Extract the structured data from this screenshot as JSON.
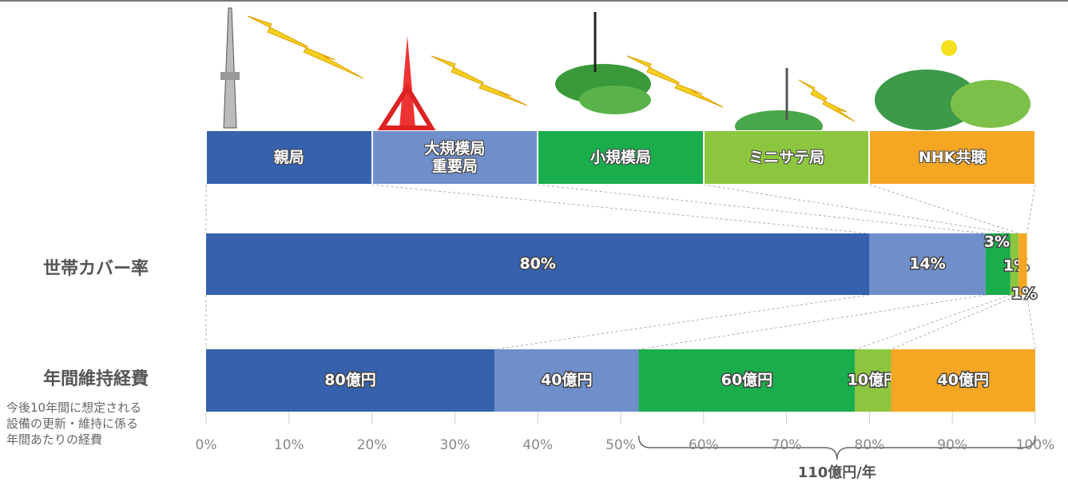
{
  "chart_data": {
    "type": "stacked-bar-100",
    "rows": [
      "世帯カバー率",
      "年間維持経費"
    ],
    "row_note": "今後10年間に想定される\n設備の更新・維持に係る\n年間あたりの経費",
    "normalize": [
      false,
      true
    ],
    "series": [
      {
        "name": "親局",
        "color": "#3561ad",
        "values": [
          80,
          80
        ],
        "value_labels": [
          "80%",
          "80億円"
        ]
      },
      {
        "name": "大規模局\n重要局",
        "color": "#6f8fcb",
        "values": [
          14,
          40
        ],
        "value_labels": [
          "14%",
          "40億円"
        ]
      },
      {
        "name": "小規模局",
        "color": "#1aad4c",
        "values": [
          3,
          60
        ],
        "value_labels": [
          "3%",
          "60億円"
        ]
      },
      {
        "name": "ミニサテ局",
        "color": "#8cc63f",
        "values": [
          1,
          10
        ],
        "value_labels": [
          "1%",
          "10億円"
        ]
      },
      {
        "name": "NHK共聴",
        "color": "#f5a623",
        "values": [
          1,
          40
        ],
        "value_labels": [
          "1%",
          "40億円"
        ]
      }
    ],
    "annotation": "110億円/年",
    "xlim": [
      0,
      100
    ],
    "xticks": [
      {
        "value": 0,
        "label": "0%"
      },
      {
        "value": 10,
        "label": "10%"
      },
      {
        "value": 20,
        "label": "20%"
      },
      {
        "value": 30,
        "label": "30%"
      },
      {
        "value": 40,
        "label": "40%"
      },
      {
        "value": 50,
        "label": "50%"
      },
      {
        "value": 60,
        "label": "60%"
      },
      {
        "value": 70,
        "label": "70%"
      },
      {
        "value": 80,
        "label": "80%"
      },
      {
        "value": 90,
        "label": "90%"
      },
      {
        "value": 100,
        "label": "100%"
      }
    ]
  }
}
